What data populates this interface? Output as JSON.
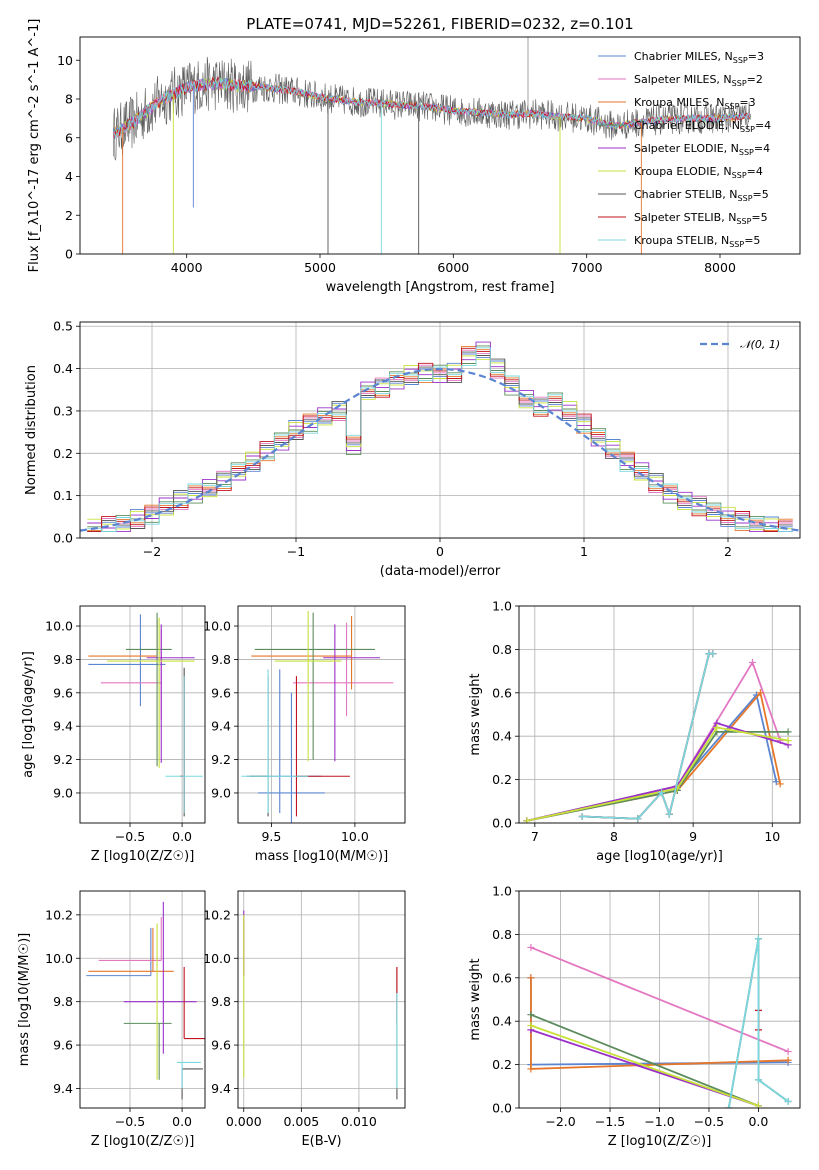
{
  "chart_data": [
    {
      "type": "line",
      "title": "PLATE=0741, MJD=52261, FIBERID=0232, z=0.101",
      "xlabel": "wavelength [Angstrom, rest frame]",
      "ylabel": "Flux [f_λ10^-17 erg cm^-2 s^-1 A^-1]",
      "xlim": [
        3200,
        8600
      ],
      "ylim": [
        0,
        11.2
      ],
      "xticks": [
        "4000",
        "5000",
        "6000",
        "7000",
        "8000"
      ],
      "yticks": [
        "0",
        "2",
        "4",
        "6",
        "8",
        "10"
      ],
      "grid": false,
      "legend_position": "top-right",
      "data": {
        "x": [
          3450,
          3600,
          3800,
          4000,
          4200,
          4400,
          4600,
          4800,
          5000,
          5200,
          5400,
          5600,
          5800,
          6000,
          6200,
          6400,
          6600,
          6800,
          7000,
          7200,
          7400,
          7600,
          7800,
          8000,
          8200
        ],
        "y": [
          6.2,
          6.8,
          7.9,
          8.6,
          8.8,
          8.7,
          8.6,
          8.4,
          8.1,
          7.9,
          7.8,
          7.7,
          7.6,
          7.4,
          7.3,
          7.2,
          7.25,
          7.1,
          7.0,
          6.6,
          6.8,
          6.95,
          7.0,
          7.0,
          7.1
        ]
      },
      "series": [
        {
          "name": "Chabrier MILES, N_SSP=3",
          "sup": "",
          "sub": "SSP",
          "suffix": "=3",
          "color": "#5b84d1"
        },
        {
          "name": "Salpeter MILES, N_SSP=2",
          "sub": "SSP",
          "suffix": "=2",
          "color": "#e377c2"
        },
        {
          "name": "Kroupa MILES, N_SSP=3",
          "sub": "SSP",
          "suffix": "=3",
          "color": "#e6772a"
        },
        {
          "name": "Chabrier ELODIE, N_SSP=4",
          "sub": "SSP",
          "suffix": "=4",
          "color": "#5c8c5c"
        },
        {
          "name": "Salpeter ELODIE, N_SSP=4",
          "sub": "SSP",
          "suffix": "=4",
          "color": "#9b30c9"
        },
        {
          "name": "Kroupa ELODIE, N_SSP=4",
          "sub": "SSP",
          "suffix": "=4",
          "color": "#c8e03a"
        },
        {
          "name": "Chabrier STELIB, N_SSP=5",
          "sub": "SSP",
          "suffix": "=5",
          "color": "#555555"
        },
        {
          "name": "Salpeter STELIB, N_SSP=5",
          "sub": "SSP",
          "suffix": "=5",
          "color": "#c0141e"
        },
        {
          "name": "Kroupa STELIB, N_SSP=5",
          "sub": "SSP",
          "suffix": "=5",
          "color": "#7ad8de"
        }
      ],
      "legend_prefixes": [
        "Chabrier MILES, N",
        "Salpeter MILES, N",
        "Kroupa MILES, N",
        "Chabrier ELODIE, N",
        "Salpeter ELODIE, N",
        "Kroupa ELODIE, N",
        "Chabrier STELIB, N",
        "Salpeter STELIB, N",
        "Kroupa STELIB, N"
      ]
    },
    {
      "type": "line",
      "xlabel": "(data-model)/error",
      "ylabel": "Normed distribution",
      "xlim": [
        -2.5,
        2.5
      ],
      "ylim": [
        0,
        0.51
      ],
      "xticks": [
        "−2",
        "−1",
        "0",
        "1",
        "2"
      ],
      "yticks": [
        "0.0",
        "0.1",
        "0.2",
        "0.3",
        "0.4",
        "0.5"
      ],
      "grid": true,
      "legend_position": "top-right",
      "legend": "𝒩(0, 1)",
      "histogram_centers": [
        -2.4,
        -2.3,
        -2.2,
        -2.1,
        -2.0,
        -1.9,
        -1.8,
        -1.7,
        -1.6,
        -1.5,
        -1.4,
        -1.3,
        -1.2,
        -1.1,
        -1.0,
        -0.9,
        -0.8,
        -0.7,
        -0.6,
        -0.5,
        -0.4,
        -0.3,
        -0.2,
        -0.1,
        0.0,
        0.1,
        0.2,
        0.3,
        0.4,
        0.5,
        0.6,
        0.7,
        0.8,
        0.9,
        1.0,
        1.1,
        1.2,
        1.3,
        1.4,
        1.5,
        1.6,
        1.7,
        1.8,
        1.9,
        2.0,
        2.1,
        2.2,
        2.3,
        2.4
      ],
      "histogram_base": [
        0.022,
        0.028,
        0.035,
        0.045,
        0.055,
        0.072,
        0.09,
        0.105,
        0.12,
        0.135,
        0.155,
        0.18,
        0.205,
        0.23,
        0.255,
        0.27,
        0.285,
        0.3,
        0.22,
        0.35,
        0.355,
        0.37,
        0.385,
        0.39,
        0.39,
        0.39,
        0.43,
        0.44,
        0.4,
        0.36,
        0.33,
        0.31,
        0.32,
        0.3,
        0.27,
        0.24,
        0.21,
        0.18,
        0.155,
        0.13,
        0.105,
        0.09,
        0.075,
        0.06,
        0.05,
        0.04,
        0.033,
        0.027,
        0.022
      ],
      "series_colors": [
        "#5b84d1",
        "#e377c2",
        "#e6772a",
        "#5c8c5c",
        "#9b30c9",
        "#c8e03a",
        "#555555",
        "#c0141e",
        "#7ad8de"
      ]
    },
    {
      "type": "scatter",
      "subtype": "errorbar",
      "xlabel": "Z [log10(Z/Z☉)]",
      "ylabel": "age  [log10(age/yr)]",
      "xlim": [
        -0.98,
        0.22
      ],
      "ylim": [
        8.82,
        10.12
      ],
      "xticks": [
        "−0.5",
        "0.0"
      ],
      "yticks": [
        "9.0",
        "9.2",
        "9.4",
        "9.6",
        "9.8",
        "10.0"
      ],
      "grid": true,
      "points": [
        {
          "x": -0.4,
          "y": 9.77,
          "xerr": [
            0.5,
            0.24
          ],
          "yerr": [
            0.25,
            0.3
          ],
          "color": "#5b84d1"
        },
        {
          "x": -0.2,
          "y": 9.66,
          "xerr": [
            0.58,
            0.0
          ],
          "yerr": [
            0.22,
            0.32
          ],
          "color": "#e377c2"
        },
        {
          "x": -0.24,
          "y": 9.82,
          "xerr": [
            0.66,
            0.0
          ],
          "yerr": [
            0.0,
            0.22
          ],
          "color": "#e6772a"
        },
        {
          "x": -0.24,
          "y": 9.86,
          "xerr": [
            0.3,
            0.14
          ],
          "yerr": [
            0.7,
            0.22
          ],
          "color": "#5c8c5c"
        },
        {
          "x": -0.2,
          "y": 9.81,
          "xerr": [
            0.14,
            0.32
          ],
          "yerr": [
            0.63,
            0.2
          ],
          "color": "#9b30c9"
        },
        {
          "x": -0.22,
          "y": 9.79,
          "xerr": [
            0.5,
            0.34
          ],
          "yerr": [
            0.64,
            0.26
          ],
          "color": "#c8e03a"
        },
        {
          "x": 0.02,
          "y": 9.1,
          "xerr": [
            0.0,
            0.0
          ],
          "yerr": [
            0.24,
            0.65
          ],
          "color": "#555555"
        },
        {
          "x": 0.02,
          "y": 9.1,
          "xerr": [
            0.04,
            0.0
          ],
          "yerr": [
            0.22,
            0.6
          ],
          "color": "#c0141e"
        },
        {
          "x": 0.02,
          "y": 9.1,
          "xerr": [
            0.18,
            0.18
          ],
          "yerr": [
            0.22,
            0.6
          ],
          "color": "#7ad8de"
        }
      ]
    },
    {
      "type": "scatter",
      "subtype": "errorbar",
      "xlabel": "mass [log10(M/M☉)]",
      "xlim": [
        9.3,
        10.3
      ],
      "ylim": [
        8.82,
        10.12
      ],
      "xticks": [
        "9.5",
        "10.0"
      ],
      "yticks": [
        "9.0",
        "9.2",
        "9.4",
        "9.6",
        "9.8",
        "10.0"
      ],
      "grid": true,
      "points": [
        {
          "x": 9.55,
          "y": 9.1,
          "xerr": [
            0.2,
            0.25
          ],
          "yerr": [
            0.22,
            0.64
          ],
          "color": "#5b84d1"
        },
        {
          "x": 9.62,
          "y": 9.0,
          "xerr": [
            0.2,
            0.2
          ],
          "yerr": [
            0.22,
            0.6
          ],
          "color": "#5b84d1"
        },
        {
          "x": 9.95,
          "y": 9.66,
          "xerr": [
            0.32,
            0.28
          ],
          "yerr": [
            0.2,
            0.36
          ],
          "color": "#e377c2"
        },
        {
          "x": 9.98,
          "y": 9.82,
          "xerr": [
            0.6,
            0.0
          ],
          "yerr": [
            0.2,
            0.24
          ],
          "color": "#e6772a"
        },
        {
          "x": 9.75,
          "y": 9.86,
          "xerr": [
            0.35,
            0.37
          ],
          "yerr": [
            0.66,
            0.22
          ],
          "color": "#5c8c5c"
        },
        {
          "x": 9.88,
          "y": 9.81,
          "xerr": [
            0.07,
            0.27
          ],
          "yerr": [
            0.62,
            0.2
          ],
          "color": "#9b30c9"
        },
        {
          "x": 9.72,
          "y": 9.79,
          "xerr": [
            0.2,
            0.2
          ],
          "yerr": [
            0.6,
            0.3
          ],
          "color": "#c8e03a"
        },
        {
          "x": 9.48,
          "y": 9.1,
          "xerr": [
            0.11,
            0.0
          ],
          "yerr": [
            0.24,
            0.6
          ],
          "color": "#555555"
        },
        {
          "x": 9.65,
          "y": 9.1,
          "xerr": [
            0.0,
            0.32
          ],
          "yerr": [
            0.24,
            0.6
          ],
          "color": "#c0141e"
        },
        {
          "x": 9.48,
          "y": 9.1,
          "xerr": [
            0.16,
            0.24
          ],
          "yerr": [
            0.22,
            0.64
          ],
          "color": "#7ad8de"
        }
      ]
    },
    {
      "type": "line",
      "xlabel": "age  [log10(age/yr)]",
      "ylabel": "mass weight",
      "xlim": [
        6.8,
        10.35
      ],
      "ylim": [
        0,
        1.0
      ],
      "xticks": [
        "7",
        "8",
        "9",
        "10"
      ],
      "yticks": [
        "0.0",
        "0.2",
        "0.4",
        "0.6",
        "0.8",
        "1.0"
      ],
      "grid": true,
      "series": [
        {
          "color": "#5b84d1",
          "x": [
            6.9,
            8.8,
            9.8,
            10.05
          ],
          "y": [
            0.01,
            0.17,
            0.59,
            0.19
          ]
        },
        {
          "color": "#e377c2",
          "x": [
            6.9,
            8.8,
            9.75,
            10.1
          ],
          "y": [
            0.01,
            0.17,
            0.74,
            0.38
          ]
        },
        {
          "color": "#e6772a",
          "x": [
            6.9,
            8.8,
            9.85,
            10.1
          ],
          "y": [
            0.01,
            0.15,
            0.6,
            0.18
          ]
        },
        {
          "color": "#5c8c5c",
          "x": [
            6.9,
            8.8,
            9.3,
            10.2
          ],
          "y": [
            0.01,
            0.15,
            0.42,
            0.42
          ]
        },
        {
          "color": "#9b30c9",
          "x": [
            6.9,
            8.8,
            9.3,
            10.2
          ],
          "y": [
            0.01,
            0.17,
            0.46,
            0.36
          ]
        },
        {
          "color": "#c8e03a",
          "x": [
            6.9,
            8.8,
            9.3,
            10.2
          ],
          "y": [
            0.01,
            0.16,
            0.44,
            0.38
          ]
        },
        {
          "color": "#555555",
          "x": [
            7.6,
            8.3,
            8.6,
            8.7,
            9.2,
            9.25
          ],
          "y": [
            0.03,
            0.02,
            0.14,
            0.04,
            0.78,
            0.78
          ]
        },
        {
          "color": "#c0141e",
          "x": [
            7.6,
            8.3,
            8.6,
            8.7,
            9.2,
            9.25
          ],
          "y": [
            0.03,
            0.02,
            0.14,
            0.04,
            0.78,
            0.78
          ]
        },
        {
          "color": "#7ad8de",
          "x": [
            7.6,
            8.3,
            8.6,
            8.7,
            9.2,
            9.25
          ],
          "y": [
            0.03,
            0.02,
            0.14,
            0.04,
            0.78,
            0.78
          ]
        }
      ]
    },
    {
      "type": "scatter",
      "subtype": "errorbar",
      "xlabel": "Z [log10(Z/Z☉)]",
      "ylabel": "mass [log10(M/M☉)]",
      "xlim": [
        -0.98,
        0.22
      ],
      "ylim": [
        9.31,
        10.31
      ],
      "xticks": [
        "−0.5",
        "0.0"
      ],
      "yticks": [
        "9.4",
        "9.6",
        "9.8",
        "10.0",
        "10.2"
      ],
      "grid": true,
      "points": [
        {
          "x": -0.3,
          "y": 9.92,
          "xerr": [
            0.62,
            0.0
          ],
          "yerr": [
            0.0,
            0.22
          ],
          "color": "#5b84d1"
        },
        {
          "x": -0.2,
          "y": 9.99,
          "xerr": [
            0.6,
            0.0
          ],
          "yerr": [
            0.0,
            0.2
          ],
          "color": "#e377c2"
        },
        {
          "x": -0.28,
          "y": 9.94,
          "xerr": [
            0.62,
            0.2
          ],
          "yerr": [
            0.0,
            0.2
          ],
          "color": "#e6772a"
        },
        {
          "x": -0.22,
          "y": 9.7,
          "xerr": [
            0.34,
            0.12
          ],
          "yerr": [
            0.26,
            0.0
          ],
          "color": "#5c8c5c"
        },
        {
          "x": -0.18,
          "y": 9.8,
          "xerr": [
            0.38,
            0.32
          ],
          "yerr": [
            0.24,
            0.46
          ],
          "color": "#9b30c9"
        },
        {
          "x": -0.24,
          "y": 9.7,
          "xerr": [
            0.0,
            0.0
          ],
          "yerr": [
            0.26,
            0.46
          ],
          "color": "#c8e03a"
        },
        {
          "x": 0.0,
          "y": 9.49,
          "xerr": [
            0.0,
            0.2
          ],
          "yerr": [
            0.14,
            0.0
          ],
          "color": "#555555"
        },
        {
          "x": 0.02,
          "y": 9.63,
          "xerr": [
            0.0,
            0.2
          ],
          "yerr": [
            0.0,
            0.33
          ],
          "color": "#c0141e"
        },
        {
          "x": 0.0,
          "y": 9.52,
          "xerr": [
            0.05,
            0.18
          ],
          "yerr": [
            0.12,
            0.0
          ],
          "color": "#7ad8de"
        }
      ]
    },
    {
      "type": "scatter",
      "subtype": "errorbar",
      "xlabel": "E(B-V)",
      "xlim": [
        -0.0005,
        0.014
      ],
      "ylim": [
        9.31,
        10.31
      ],
      "xticks": [
        "0.000",
        "0.005",
        "0.010"
      ],
      "yticks": [
        "9.4",
        "9.6",
        "9.8",
        "10.0",
        "10.2"
      ],
      "grid": true,
      "points": [
        {
          "x": 0.0,
          "y": 9.92,
          "yerr": [
            0.0,
            0.3
          ],
          "color": "#9b30c9"
        },
        {
          "x": 0.0,
          "y": 9.8,
          "yerr": [
            0.35,
            0.4
          ],
          "color": "#c8e03a"
        },
        {
          "x": 0.0133,
          "y": 9.63,
          "yerr": [
            0.28,
            0.33
          ],
          "color": "#555555"
        },
        {
          "x": 0.0133,
          "y": 9.7,
          "yerr": [
            0.0,
            0.26
          ],
          "color": "#c0141e"
        },
        {
          "x": 0.0133,
          "y": 9.6,
          "yerr": [
            0.2,
            0.24
          ],
          "color": "#7ad8de"
        }
      ]
    },
    {
      "type": "line",
      "xlabel": "Z [log10(Z/Z☉)]",
      "ylabel": "mass weight",
      "xlim": [
        -2.42,
        0.42
      ],
      "ylim": [
        0,
        1.0
      ],
      "xticks": [
        "−2.0",
        "−1.5",
        "−1.0",
        "−0.5",
        "0.0"
      ],
      "yticks": [
        "0.0",
        "0.2",
        "0.4",
        "0.6",
        "0.8",
        "1.0"
      ],
      "grid": true,
      "series": [
        {
          "color": "#5b84d1",
          "x": [
            -2.3,
            -2.3,
            0.3
          ],
          "y": [
            0.6,
            0.2,
            0.21
          ]
        },
        {
          "color": "#e377c2",
          "x": [
            -2.3,
            0.3
          ],
          "y": [
            0.74,
            0.26
          ]
        },
        {
          "color": "#e6772a",
          "x": [
            -2.3,
            -2.3,
            0.3
          ],
          "y": [
            0.6,
            0.18,
            0.22
          ]
        },
        {
          "color": "#5c8c5c",
          "x": [
            -2.3,
            0.0
          ],
          "y": [
            0.43,
            0.01
          ]
        },
        {
          "color": "#9b30c9",
          "x": [
            -2.3,
            0.0
          ],
          "y": [
            0.36,
            0.01
          ]
        },
        {
          "color": "#c8e03a",
          "x": [
            -2.3,
            0.0
          ],
          "y": [
            0.38,
            0.01
          ]
        },
        {
          "color": "#555555",
          "x": [
            -0.3,
            0.0,
            0.0,
            0.3
          ],
          "y": [
            0.0,
            0.78,
            0.13,
            0.03
          ]
        },
        {
          "color": "#c0141e",
          "x": [
            0.0,
            0.0
          ],
          "y": [
            0.45,
            0.36
          ]
        },
        {
          "color": "#7ad8de",
          "x": [
            -0.3,
            0.0,
            0.0,
            0.3
          ],
          "y": [
            0.0,
            0.78,
            0.13,
            0.03
          ]
        }
      ]
    }
  ]
}
